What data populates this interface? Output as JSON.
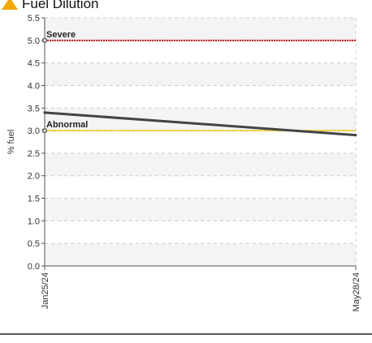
{
  "chart_data": {
    "type": "line",
    "title": "Fuel Dilution",
    "title_icon": "warning-triangle-icon",
    "ylabel": "% fuel",
    "xlabel": "",
    "ylim": [
      0,
      5.5
    ],
    "yticks": [
      0.0,
      0.5,
      1.0,
      1.5,
      2.0,
      2.5,
      3.0,
      3.5,
      4.0,
      4.5,
      5.0,
      5.5
    ],
    "ytick_labels": [
      "0.0",
      "0.5",
      "1.0",
      "1.5",
      "2.0",
      "2.5",
      "3.0",
      "3.5",
      "4.0",
      "4.5",
      "5.0",
      "5.5"
    ],
    "x": [
      "Jan25/24",
      "May28/24"
    ],
    "series": [
      {
        "values": [
          3.4,
          2.9
        ],
        "color": "#444444"
      }
    ],
    "thresholds": [
      {
        "name": "Severe",
        "value": 5.0,
        "color": "#dd1111"
      },
      {
        "name": "Abnormal",
        "value": 3.0,
        "color": "#f2c400"
      }
    ],
    "grid": true,
    "band_colors": [
      "#f4f4f4",
      "#ffffff"
    ],
    "colors": {
      "title_icon": "#f5a800",
      "axis": "#555555",
      "grid": "#cccccc",
      "footer_rule": "#222222"
    }
  }
}
